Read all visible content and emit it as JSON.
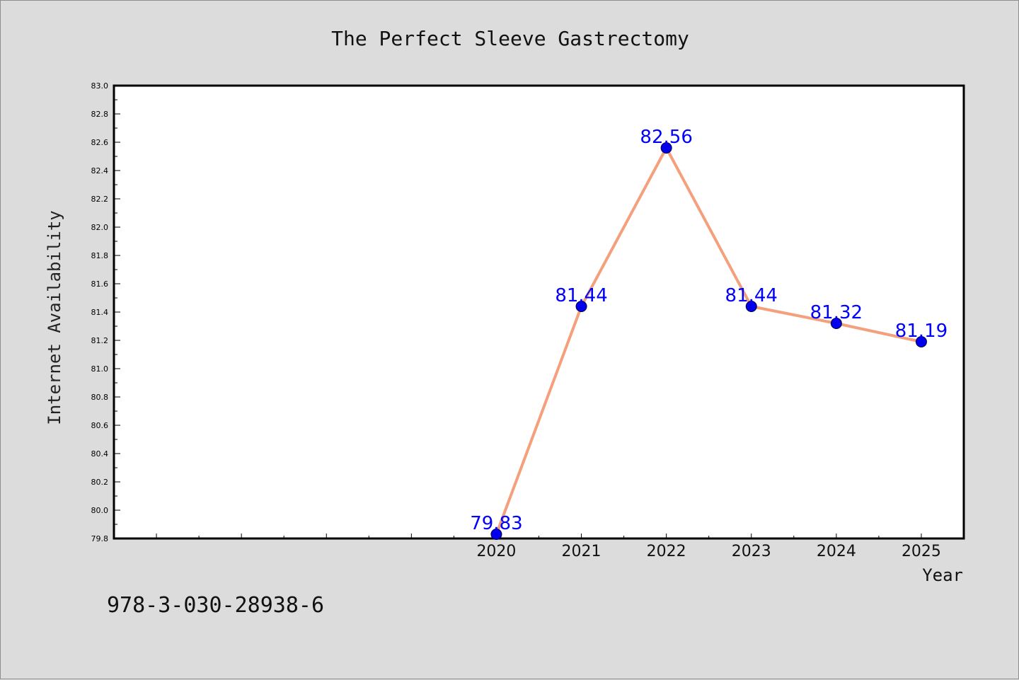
{
  "chart_data": {
    "type": "line",
    "title": "The Perfect Sleeve Gastrectomy",
    "xlabel": "Year",
    "ylabel": "Internet Availability",
    "x": [
      2020,
      2021,
      2022,
      2023,
      2024,
      2025
    ],
    "series": [
      {
        "values": [
          79.83,
          81.44,
          82.56,
          81.44,
          81.32,
          81.19
        ]
      }
    ],
    "data_labels": [
      "79.83",
      "81.44",
      "82.56",
      "81.44",
      "81.32",
      "81.19"
    ],
    "xlim": [
      2015.5,
      2025.5
    ],
    "ylim": [
      79.8,
      83.0
    ],
    "y_ticks": [
      "79.8",
      "80.0",
      "80.2",
      "80.4",
      "80.6",
      "80.8",
      "81.0",
      "81.2",
      "81.4",
      "81.6",
      "81.8",
      "82.0",
      "82.2",
      "82.4",
      "82.6",
      "82.8",
      "83.0"
    ],
    "x_tick_labels": [
      "2020",
      "2021",
      "2022",
      "2023",
      "2024",
      "2025"
    ],
    "grid": false,
    "line_color": "#f4a07c",
    "marker_color": "#0000ee",
    "label_color": "#0000ff"
  },
  "footer_text": "978-3-030-28938-6"
}
